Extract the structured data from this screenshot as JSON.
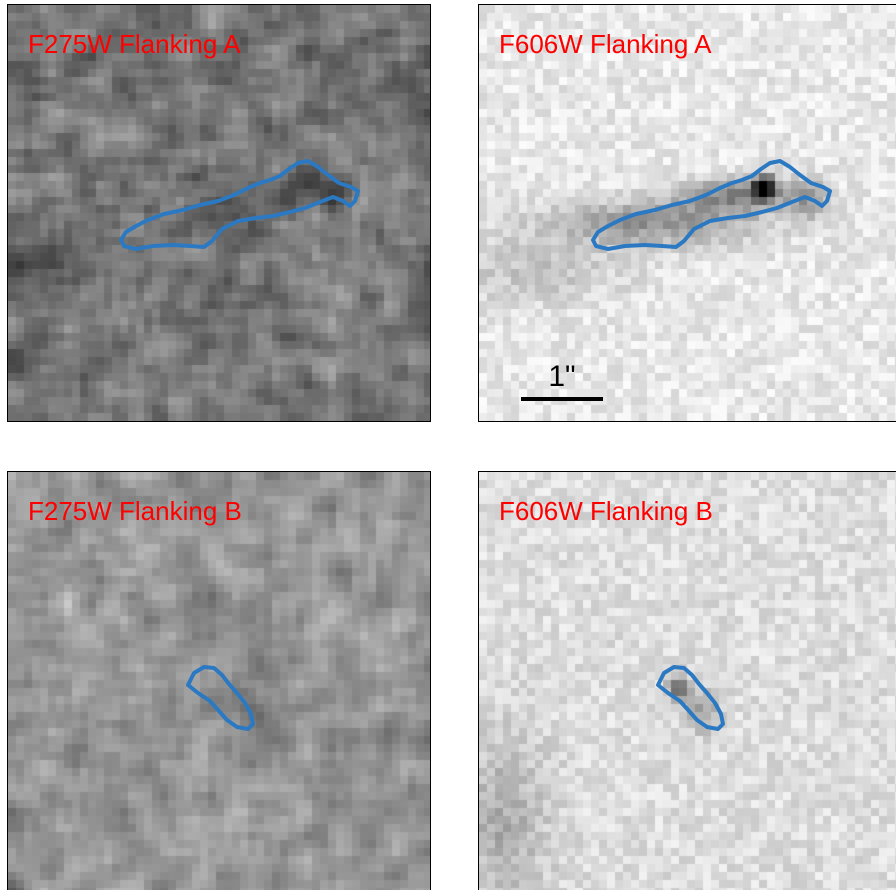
{
  "panels": [
    {
      "key": "a_f275",
      "label": "F275W Flanking A",
      "label_color": "#ff0000",
      "background_tone": "dark-gray noise",
      "contour_color": "#2b79c2"
    },
    {
      "key": "a_f606",
      "label": "F606W Flanking A",
      "label_color": "#ff0000",
      "background_tone": "light-gray noise with dark elongated source",
      "contour_color": "#2b79c2",
      "scale_bar_label": "1\""
    },
    {
      "key": "b_f275",
      "label": "F275W Flanking B",
      "label_color": "#ff0000",
      "background_tone": "mid-gray noise",
      "contour_color": "#2b79c2"
    },
    {
      "key": "b_f606",
      "label": "F606W Flanking B",
      "label_color": "#ff0000",
      "background_tone": "light-gray noise with small dark source",
      "contour_color": "#2b79c2"
    }
  ]
}
